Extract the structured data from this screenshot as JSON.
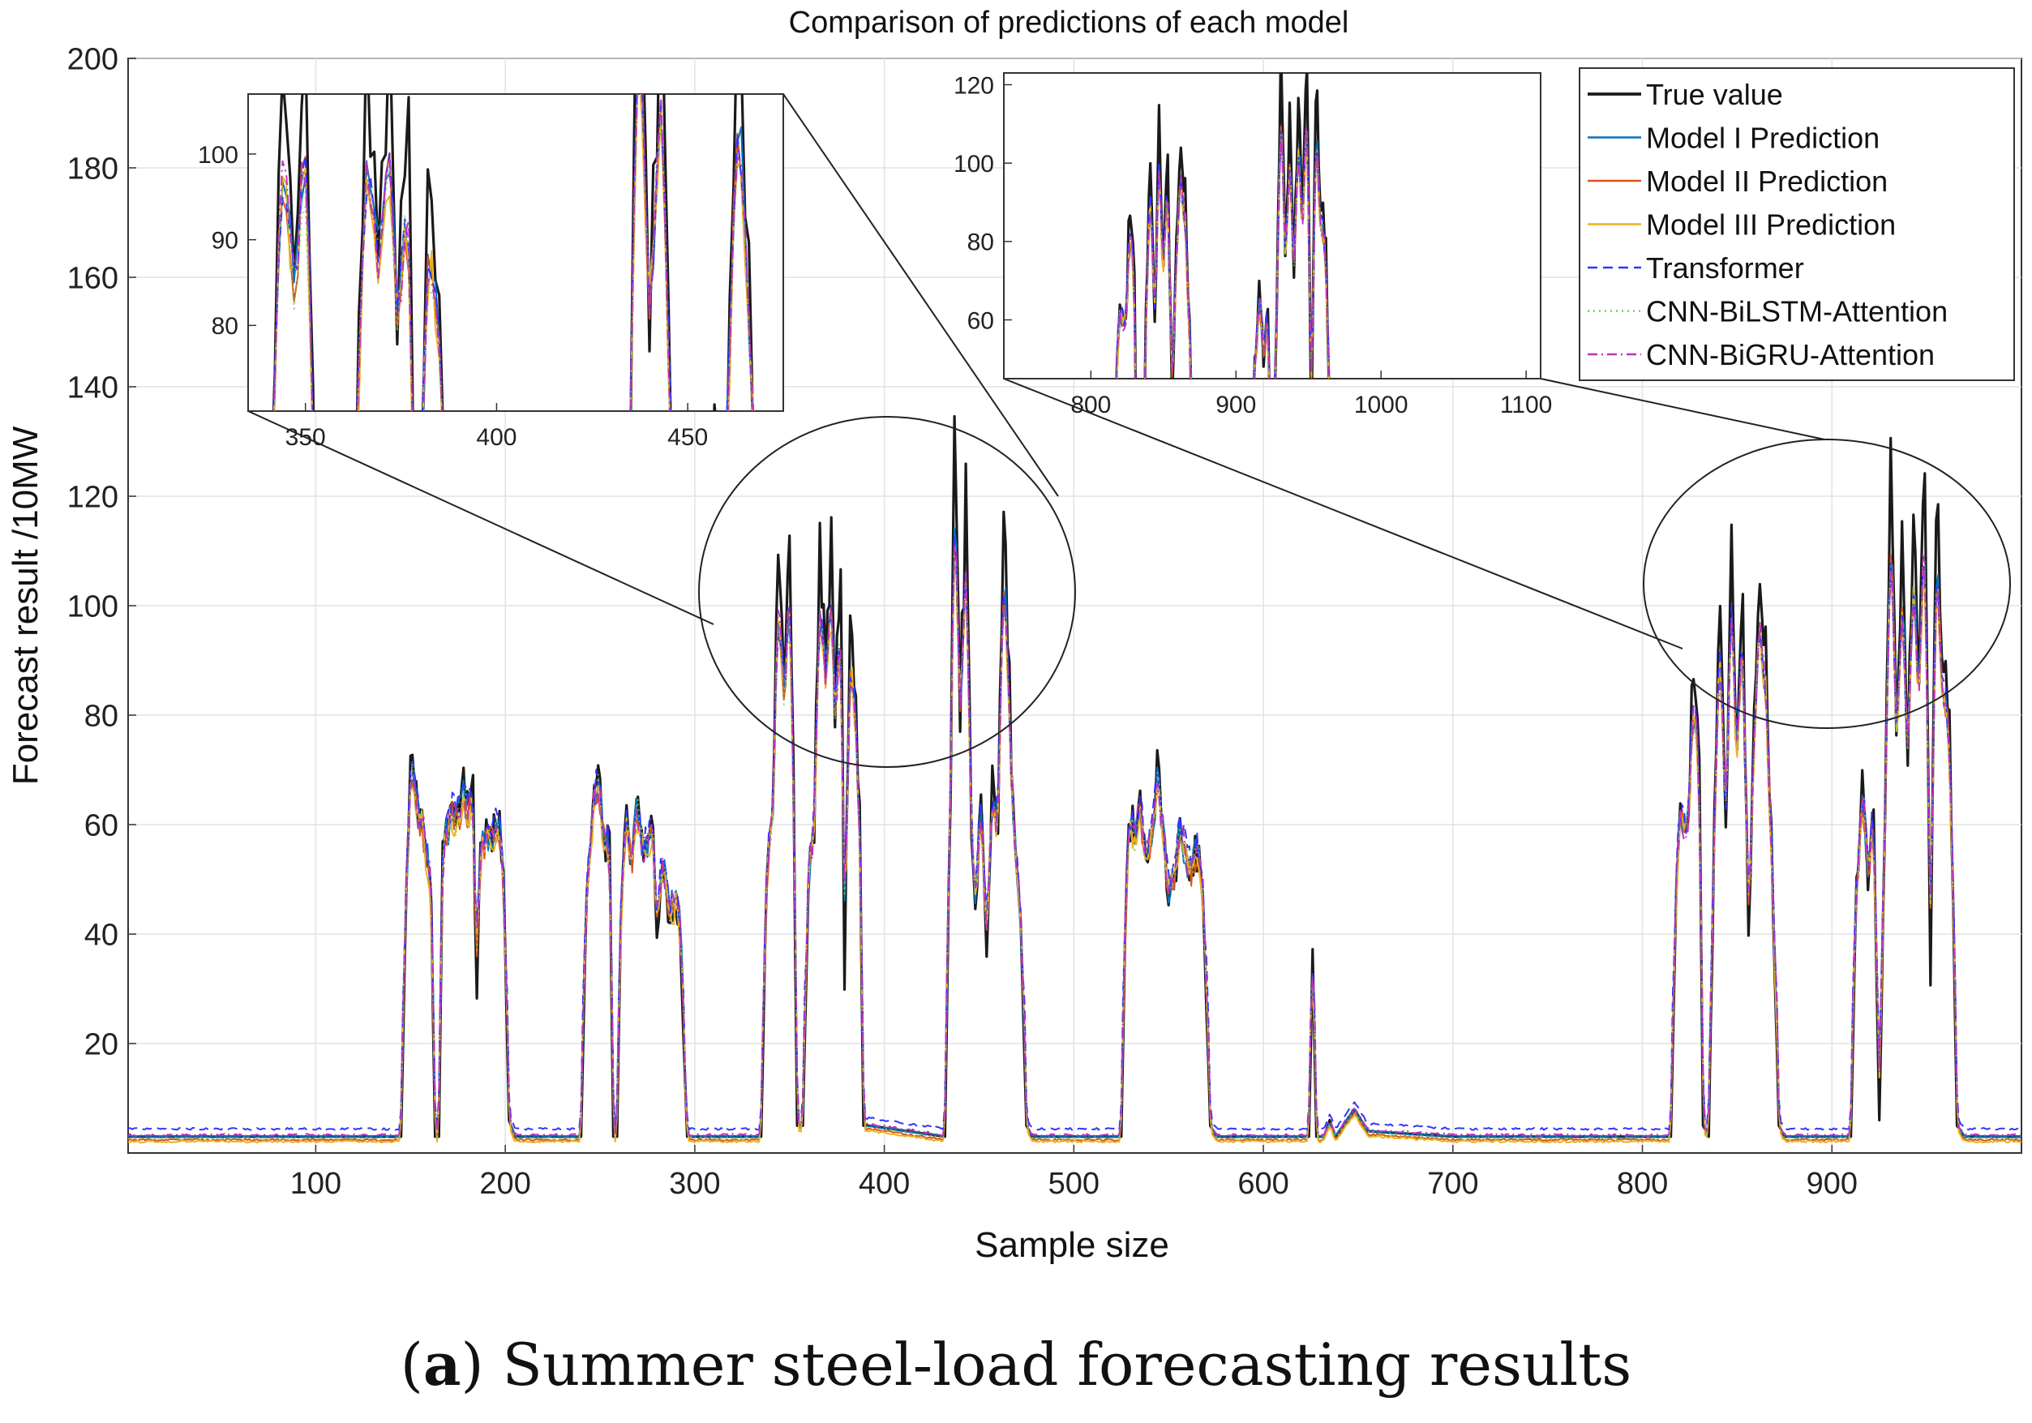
{
  "chart_data": {
    "type": "line",
    "title": "Comparison of predictions of each model",
    "xlabel": "Sample size",
    "ylabel": "Forecast result /10MW",
    "xlim": [
      1,
      1000
    ],
    "ylim": [
      0,
      200
    ],
    "xticks": [
      100,
      200,
      300,
      400,
      500,
      600,
      700,
      800,
      900
    ],
    "yticks": [
      20,
      40,
      60,
      80,
      100,
      120,
      140,
      160,
      180,
      200
    ],
    "grid": true,
    "legend_position": "top-right",
    "series": [
      {
        "name": "True value",
        "color": "#1a1a1a",
        "style": "solid",
        "width": 3.2
      },
      {
        "name": "Model I Prediction",
        "color": "#0072BD",
        "style": "solid",
        "width": 2
      },
      {
        "name": "Model II Prediction",
        "color": "#D95319",
        "style": "solid",
        "width": 2
      },
      {
        "name": "Model III Prediction",
        "color": "#EDB120",
        "style": "solid",
        "width": 2
      },
      {
        "name": "Transformer",
        "color": "#3333ff",
        "style": "dashed",
        "width": 2
      },
      {
        "name": "CNN-BiLSTM-Attention",
        "color": "#77cc55",
        "style": "dotted",
        "width": 2
      },
      {
        "name": "CNN-BiGRU-Attention",
        "color": "#bb33bb",
        "style": "dashdot",
        "width": 2
      }
    ],
    "true_value_profile": [
      [
        1,
        3
      ],
      [
        145,
        3
      ],
      [
        148,
        50
      ],
      [
        151,
        78
      ],
      [
        154,
        60
      ],
      [
        158,
        58
      ],
      [
        161,
        45
      ],
      [
        163,
        3
      ],
      [
        165,
        3
      ],
      [
        167,
        55
      ],
      [
        170,
        62
      ],
      [
        174,
        60
      ],
      [
        177,
        68
      ],
      [
        180,
        62
      ],
      [
        183,
        66
      ],
      [
        185,
        30
      ],
      [
        187,
        55
      ],
      [
        190,
        60
      ],
      [
        194,
        58
      ],
      [
        197,
        60
      ],
      [
        199,
        52
      ],
      [
        202,
        6
      ],
      [
        205,
        3
      ],
      [
        240,
        3
      ],
      [
        243,
        50
      ],
      [
        246,
        60
      ],
      [
        249,
        70
      ],
      [
        252,
        58
      ],
      [
        255,
        55
      ],
      [
        257,
        3
      ],
      [
        259,
        3
      ],
      [
        261,
        45
      ],
      [
        264,
        60
      ],
      [
        267,
        55
      ],
      [
        270,
        66
      ],
      [
        273,
        55
      ],
      [
        276,
        58
      ],
      [
        278,
        60
      ],
      [
        280,
        40
      ],
      [
        283,
        55
      ],
      [
        286,
        42
      ],
      [
        289,
        45
      ],
      [
        292,
        40
      ],
      [
        296,
        3
      ],
      [
        335,
        3
      ],
      [
        338,
        50
      ],
      [
        341,
        60
      ],
      [
        344,
        110
      ],
      [
        347,
        90
      ],
      [
        350,
        110
      ],
      [
        352,
        70
      ],
      [
        354,
        5
      ],
      [
        357,
        5
      ],
      [
        360,
        50
      ],
      [
        363,
        60
      ],
      [
        366,
        115
      ],
      [
        369,
        85
      ],
      [
        372,
        110
      ],
      [
        374,
        80
      ],
      [
        377,
        108
      ],
      [
        379,
        30
      ],
      [
        382,
        105
      ],
      [
        384,
        90
      ],
      [
        387,
        60
      ],
      [
        389,
        5
      ],
      [
        392,
        5
      ],
      [
        432,
        3
      ],
      [
        435,
        70
      ],
      [
        437,
        132
      ],
      [
        440,
        80
      ],
      [
        443,
        120
      ],
      [
        446,
        55
      ],
      [
        448,
        45
      ],
      [
        451,
        65
      ],
      [
        454,
        35
      ],
      [
        457,
        70
      ],
      [
        460,
        60
      ],
      [
        463,
        115
      ],
      [
        466,
        85
      ],
      [
        469,
        55
      ],
      [
        472,
        40
      ],
      [
        475,
        5
      ],
      [
        478,
        3
      ],
      [
        525,
        3
      ],
      [
        528,
        55
      ],
      [
        531,
        60
      ],
      [
        535,
        62
      ],
      [
        538,
        55
      ],
      [
        541,
        60
      ],
      [
        544,
        72
      ],
      [
        547,
        60
      ],
      [
        550,
        45
      ],
      [
        553,
        50
      ],
      [
        556,
        60
      ],
      [
        560,
        50
      ],
      [
        564,
        55
      ],
      [
        568,
        50
      ],
      [
        572,
        5
      ],
      [
        575,
        3
      ],
      [
        624,
        3
      ],
      [
        626,
        35
      ],
      [
        628,
        3
      ],
      [
        632,
        3
      ],
      [
        635,
        6
      ],
      [
        638,
        3
      ],
      [
        648,
        8
      ],
      [
        655,
        4
      ],
      [
        700,
        3
      ],
      [
        815,
        3
      ],
      [
        818,
        50
      ],
      [
        821,
        65
      ],
      [
        824,
        60
      ],
      [
        827,
        92
      ],
      [
        830,
        70
      ],
      [
        832,
        5
      ],
      [
        835,
        3
      ],
      [
        838,
        60
      ],
      [
        841,
        105
      ],
      [
        844,
        60
      ],
      [
        847,
        108
      ],
      [
        850,
        75
      ],
      [
        853,
        100
      ],
      [
        856,
        40
      ],
      [
        859,
        80
      ],
      [
        862,
        105
      ],
      [
        865,
        90
      ],
      [
        868,
        60
      ],
      [
        872,
        5
      ],
      [
        875,
        3
      ],
      [
        910,
        3
      ],
      [
        913,
        50
      ],
      [
        916,
        66
      ],
      [
        919,
        50
      ],
      [
        922,
        60
      ],
      [
        925,
        6
      ],
      [
        928,
        60
      ],
      [
        931,
        125
      ],
      [
        934,
        80
      ],
      [
        937,
        110
      ],
      [
        940,
        70
      ],
      [
        943,
        115
      ],
      [
        946,
        90
      ],
      [
        949,
        125
      ],
      [
        952,
        30
      ],
      [
        955,
        120
      ],
      [
        958,
        95
      ],
      [
        962,
        80
      ],
      [
        966,
        5
      ],
      [
        970,
        3
      ],
      [
        1000,
        3
      ]
    ],
    "inset_left": {
      "xlim": [
        335,
        475
      ],
      "ylim": [
        70,
        107
      ],
      "xticks": [
        350,
        400,
        450
      ],
      "yticks": [
        80,
        90,
        100
      ]
    },
    "inset_right": {
      "xlim": [
        740,
        1110
      ],
      "ylim": [
        45,
        123
      ],
      "xticks": [
        800,
        900,
        1000,
        1100
      ],
      "yticks": [
        60,
        80,
        100,
        120
      ]
    }
  },
  "caption": {
    "label": "a",
    "text": " Summer steel-load forecasting results"
  }
}
